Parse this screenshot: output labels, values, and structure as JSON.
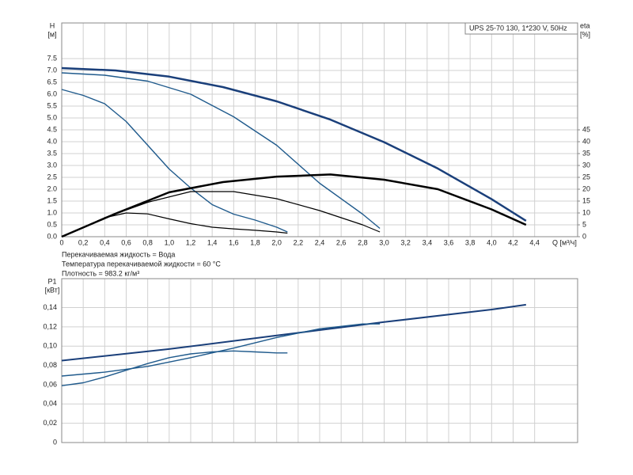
{
  "chart_data": [
    {
      "type": "line",
      "title": "UPS 25-70 130, 1*230 V, 50Hz",
      "ylabel": "H",
      "yunit": "[м]",
      "y2label": "eta",
      "y2unit": "[%]",
      "xlabel": "Q [м³/ч]",
      "annotations": [
        "Перекачиваемая жидкость = Вода",
        "Температура перекачиваемой жидкости = 60 °C",
        "Плотность = 983.2 кг/м³"
      ],
      "grid": true,
      "xlim": [
        0,
        4.8
      ],
      "xticks": [
        0,
        {
          "value": 0.2,
          "label": "0,2"
        },
        {
          "value": 0.4,
          "label": "0,4"
        },
        {
          "value": 0.6,
          "label": "0,6"
        },
        {
          "value": 0.8,
          "label": "0,8"
        },
        {
          "value": 1.0,
          "label": "1,0"
        },
        {
          "value": 1.2,
          "label": "1,2"
        },
        {
          "value": 1.4,
          "label": "1,4"
        },
        {
          "value": 1.6,
          "label": "1,6"
        },
        {
          "value": 1.8,
          "label": "1,8"
        },
        {
          "value": 2.0,
          "label": "2,0"
        },
        {
          "value": 2.2,
          "label": "2,2"
        },
        {
          "value": 2.4,
          "label": "2,4"
        },
        {
          "value": 2.6,
          "label": "2,6"
        },
        {
          "value": 2.8,
          "label": "2,8"
        },
        {
          "value": 3.0,
          "label": "3,0"
        },
        {
          "value": 3.2,
          "label": "3,2"
        },
        {
          "value": 3.4,
          "label": "3,4"
        },
        {
          "value": 3.6,
          "label": "3,6"
        },
        {
          "value": 3.8,
          "label": "3,8"
        },
        {
          "value": 4.0,
          "label": "4,0"
        },
        {
          "value": 4.2,
          "label": "4,2"
        },
        {
          "value": 4.4,
          "label": "4,4"
        }
      ],
      "ylim": [
        0,
        9
      ],
      "yticks": [
        {
          "value": 0,
          "label": "0.0"
        },
        {
          "value": 0.5,
          "label": "0.5"
        },
        {
          "value": 1.0,
          "label": "1.0"
        },
        {
          "value": 1.5,
          "label": "1.5"
        },
        {
          "value": 2.0,
          "label": "2.0"
        },
        {
          "value": 2.5,
          "label": "2.5"
        },
        {
          "value": 3.0,
          "label": "3.0"
        },
        {
          "value": 3.5,
          "label": "3.5"
        },
        {
          "value": 4.0,
          "label": "4.0"
        },
        {
          "value": 4.5,
          "label": "4.5"
        },
        {
          "value": 5.0,
          "label": "5.0"
        },
        {
          "value": 5.5,
          "label": "5.5"
        },
        {
          "value": 6.0,
          "label": "6.0"
        },
        {
          "value": 6.5,
          "label": "6.5"
        },
        {
          "value": 7.0,
          "label": "7.0"
        },
        {
          "value": 7.5,
          "label": "7.5"
        }
      ],
      "y2lim": [
        0,
        90
      ],
      "y2ticks": [
        0,
        5,
        10,
        15,
        20,
        25,
        30,
        35,
        40,
        45
      ],
      "series": [
        {
          "color": "#1a3f7a",
          "width": 2.5,
          "x": [
            0,
            0.5,
            1.0,
            1.5,
            2.0,
            2.5,
            3.0,
            3.5,
            4.0,
            4.32
          ],
          "values": [
            7.1,
            7.0,
            6.74,
            6.3,
            5.7,
            4.93,
            3.98,
            2.87,
            1.58,
            0.67
          ]
        },
        {
          "color": "#1f5a8c",
          "width": 1.4,
          "x": [
            0,
            0.4,
            0.8,
            1.2,
            1.6,
            2.0,
            2.4,
            2.8,
            2.96
          ],
          "values": [
            6.9,
            6.8,
            6.55,
            6.0,
            5.05,
            3.85,
            2.25,
            0.95,
            0.35
          ]
        },
        {
          "color": "#1f5a8c",
          "width": 1.4,
          "x": [
            0,
            0.2,
            0.4,
            0.6,
            0.8,
            1.0,
            1.2,
            1.4,
            1.6,
            1.8,
            2.0,
            2.1
          ],
          "values": [
            6.2,
            5.95,
            5.6,
            4.85,
            3.85,
            2.85,
            2.05,
            1.35,
            0.95,
            0.7,
            0.4,
            0.2
          ]
        },
        {
          "color": "#000000",
          "width": 2.5,
          "axis": "y2",
          "x": [
            0,
            0.5,
            1.0,
            1.5,
            2.0,
            2.5,
            3.0,
            3.5,
            4.0,
            4.32
          ],
          "values": [
            0,
            9.7,
            18.7,
            23,
            25.3,
            26.2,
            24,
            20,
            11.5,
            5
          ]
        },
        {
          "color": "#000000",
          "width": 1.2,
          "axis": "y2",
          "x": [
            0,
            0.4,
            0.8,
            1.2,
            1.6,
            2.0,
            2.4,
            2.8,
            2.96
          ],
          "values": [
            0,
            8,
            14.5,
            19,
            19,
            16,
            11,
            5,
            2
          ]
        },
        {
          "color": "#000000",
          "width": 1.2,
          "axis": "y2",
          "x": [
            0,
            0.2,
            0.4,
            0.6,
            0.8,
            1.0,
            1.2,
            1.4,
            1.6,
            1.8,
            2.0,
            2.1
          ],
          "values": [
            0,
            4,
            8,
            10,
            9.6,
            7.5,
            5.5,
            4,
            3.3,
            2.7,
            2,
            1.5
          ]
        }
      ]
    },
    {
      "type": "line",
      "ylabel": "P1",
      "yunit": "[кВт]",
      "grid": true,
      "xlim": [
        0,
        4.8
      ],
      "ylim": [
        0,
        0.17
      ],
      "yticks": [
        0,
        {
          "value": 0.02,
          "label": "0,02"
        },
        {
          "value": 0.04,
          "label": "0,04"
        },
        {
          "value": 0.06,
          "label": "0,06"
        },
        {
          "value": 0.08,
          "label": "0,08"
        },
        {
          "value": 0.1,
          "label": "0,10"
        },
        {
          "value": 0.12,
          "label": "0,12"
        },
        {
          "value": 0.14,
          "label": "0,14"
        }
      ],
      "series": [
        {
          "color": "#1a3f7a",
          "width": 2,
          "x": [
            0,
            1,
            2,
            3,
            4,
            4.32
          ],
          "values": [
            0.085,
            0.097,
            0.111,
            0.125,
            0.138,
            0.143
          ]
        },
        {
          "color": "#1f5a8c",
          "width": 1.4,
          "x": [
            0,
            0.4,
            0.8,
            1.2,
            1.6,
            2.0,
            2.4,
            2.8,
            2.96
          ],
          "values": [
            0.069,
            0.073,
            0.079,
            0.088,
            0.098,
            0.109,
            0.118,
            0.123,
            0.123
          ]
        },
        {
          "color": "#1f5a8c",
          "width": 1.4,
          "x": [
            0,
            0.2,
            0.4,
            0.6,
            0.8,
            1.0,
            1.2,
            1.4,
            1.6,
            1.8,
            2.0,
            2.1
          ],
          "values": [
            0.059,
            0.062,
            0.068,
            0.075,
            0.082,
            0.088,
            0.092,
            0.094,
            0.095,
            0.094,
            0.093,
            0.093
          ]
        }
      ]
    }
  ]
}
